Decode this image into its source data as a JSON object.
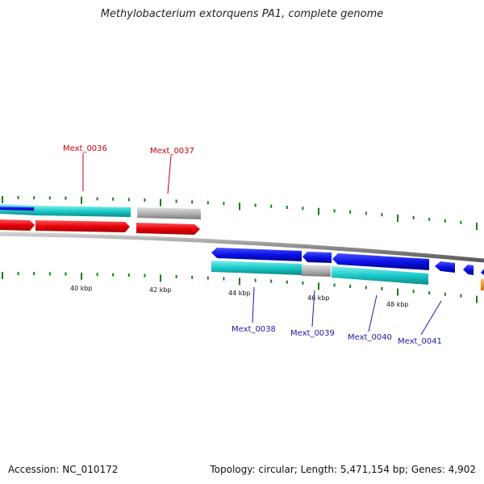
{
  "title": "Methylobacterium extorquens PA1, complete genome",
  "footer": {
    "accession": "Accession: NC_010172",
    "summary": "Topology: circular; Length: 5,471,154 bp; Genes: 4,902"
  },
  "colors": {
    "forward_cds": "#e8000b",
    "reverse_cds": "#0a12e6",
    "rna_cyan": "#18c9c6",
    "gray_feature": "#b4b4b4",
    "other_feature": "#f08c00",
    "tick": "#1f7a1f",
    "backbone": "#8c8c8c",
    "top_label": "#c8000a",
    "bottom_label": "#1a1aaa"
  },
  "axis_labels": [
    "40 kbp",
    "42 kbp",
    "44 kbp",
    "46 kbp",
    "48 kbp"
  ],
  "gene_labels_top": [
    "Mext_0036",
    "Mext_0037"
  ],
  "gene_labels_bottom": [
    "Mext_0038",
    "Mext_0039",
    "Mext_0040",
    "Mext_0041"
  ]
}
